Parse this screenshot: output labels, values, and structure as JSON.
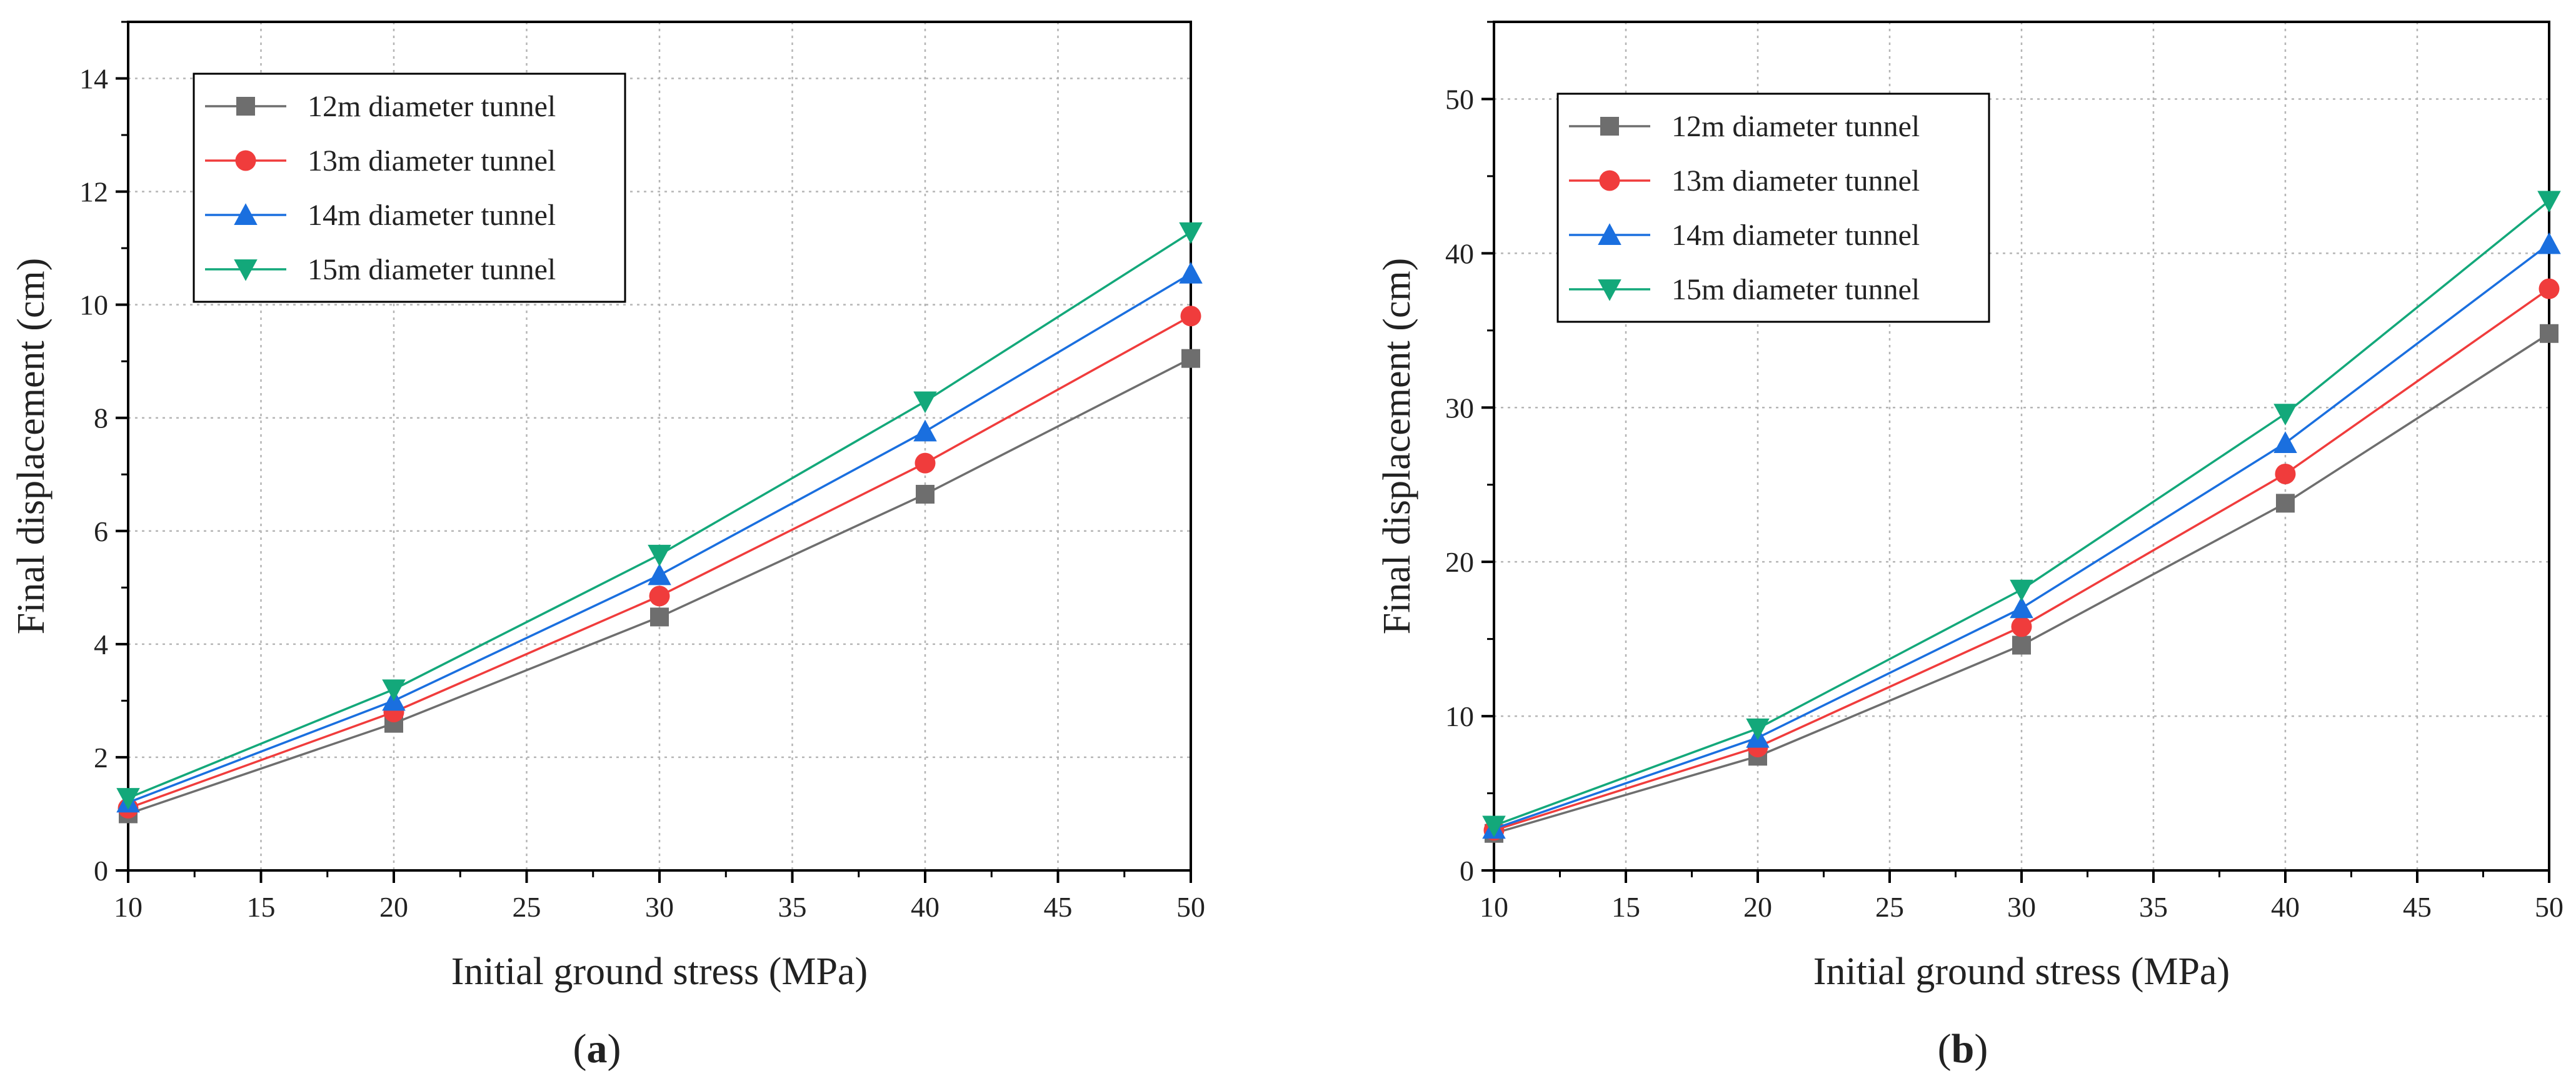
{
  "chart_data": [
    {
      "type": "line",
      "panel_label": "a",
      "xlabel": "Initial ground stress (MPa)",
      "ylabel": "Final displacement (cm)",
      "xlim": [
        10,
        50
      ],
      "ylim": [
        0,
        15
      ],
      "xticks": [
        10,
        15,
        20,
        25,
        30,
        35,
        40,
        45,
        50
      ],
      "yticks": [
        0,
        2,
        4,
        6,
        8,
        10,
        12,
        14
      ],
      "grid": true,
      "legend_position": "top-left",
      "x": [
        10,
        20,
        30,
        40,
        50
      ],
      "series": [
        {
          "name": "12m diameter tunnel",
          "color": "#6e6e6e",
          "marker": "square",
          "values": [
            1.0,
            2.6,
            4.48,
            6.65,
            9.05
          ]
        },
        {
          "name": "13m diameter tunnel",
          "color": "#f03c3c",
          "marker": "circle",
          "values": [
            1.1,
            2.8,
            4.85,
            7.2,
            9.8
          ]
        },
        {
          "name": "14m diameter tunnel",
          "color": "#1a6fdf",
          "marker": "triangle-up",
          "values": [
            1.2,
            3.0,
            5.22,
            7.76,
            10.55
          ]
        },
        {
          "name": "15m diameter tunnel",
          "color": "#13a87a",
          "marker": "triangle-down",
          "values": [
            1.28,
            3.2,
            5.58,
            8.29,
            11.28
          ]
        }
      ]
    },
    {
      "type": "line",
      "panel_label": "b",
      "xlabel": "Initial ground stress (MPa)",
      "ylabel": "Final displacement (cm)",
      "xlim": [
        10,
        50
      ],
      "ylim": [
        0,
        55
      ],
      "xticks": [
        10,
        15,
        20,
        25,
        30,
        35,
        40,
        45,
        50
      ],
      "yticks": [
        0,
        10,
        20,
        30,
        40,
        50
      ],
      "grid": true,
      "legend_position": "top-left",
      "x": [
        10,
        20,
        30,
        40,
        50
      ],
      "series": [
        {
          "name": "12m diameter tunnel",
          "color": "#6e6e6e",
          "marker": "square",
          "values": [
            2.4,
            7.4,
            14.6,
            23.8,
            34.8
          ]
        },
        {
          "name": "13m diameter tunnel",
          "color": "#f03c3c",
          "marker": "circle",
          "values": [
            2.6,
            8.0,
            15.8,
            25.7,
            37.7
          ]
        },
        {
          "name": "14m diameter tunnel",
          "color": "#1a6fdf",
          "marker": "triangle-up",
          "values": [
            2.7,
            8.6,
            17.0,
            27.7,
            40.6
          ]
        },
        {
          "name": "15m diameter tunnel",
          "color": "#13a87a",
          "marker": "triangle-down",
          "values": [
            2.9,
            9.2,
            18.2,
            29.6,
            43.4
          ]
        }
      ]
    }
  ]
}
